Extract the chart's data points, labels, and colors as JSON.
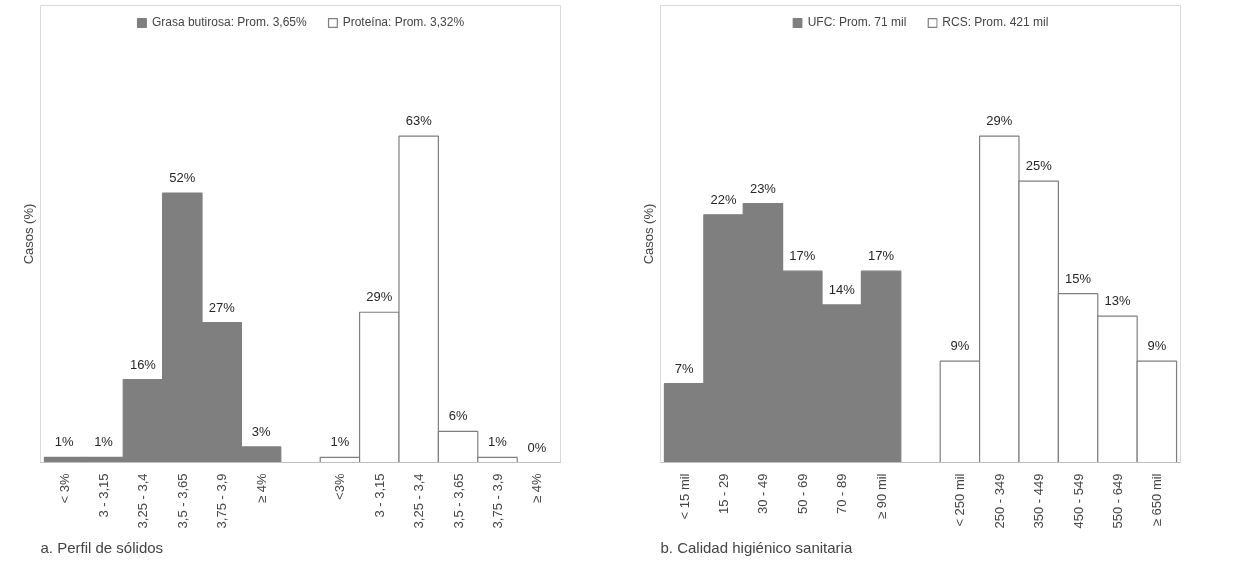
{
  "chart_data": [
    {
      "type": "bar",
      "ylabel": "Casos (%)",
      "legend": "top",
      "grid": false,
      "categories": [
        "< 3%",
        "3 - 3,15",
        "3,25 - 3,4",
        "3,5 - 3,65",
        "3,75 - 3,9",
        "≥ 4%",
        null,
        "<3%",
        "3 - 3,15",
        "3,25 - 3,4",
        "3,5 - 3,65",
        "3,75 - 3,9",
        "≥ 4%"
      ],
      "series": [
        {
          "name": "Grasa butirosa: Prom. 3,65%",
          "color": "#7f7f7f",
          "values": [
            1,
            1,
            16,
            52,
            27,
            3,
            null,
            null,
            null,
            null,
            null,
            null,
            null
          ],
          "value_labels": [
            "1%",
            "1%",
            "16%",
            "52%",
            "27%",
            "3%",
            null,
            null,
            null,
            null,
            null,
            null,
            null
          ]
        },
        {
          "name": "Proteína: Prom. 3,32%",
          "color": "#ffffff",
          "values": [
            null,
            null,
            null,
            null,
            null,
            null,
            null,
            1,
            29,
            63,
            6,
            1,
            0
          ],
          "value_labels": [
            null,
            null,
            null,
            null,
            null,
            null,
            null,
            "1%",
            "29%",
            "63%",
            "6%",
            "1%",
            "0%"
          ]
        }
      ],
      "annotations": [
        "a.     Perfil de sólidos"
      ]
    },
    {
      "type": "bar",
      "ylabel": "Casos (%)",
      "legend": "top",
      "grid": false,
      "categories": [
        "< 15 mil",
        "15 - 29",
        "30 - 49",
        "50 - 69",
        "70 - 89",
        "≥ 90 mil",
        null,
        "< 250 mil",
        "250 - 349",
        "350 - 449",
        "450 - 549",
        "550 - 649",
        "≥ 650 mil"
      ],
      "series": [
        {
          "name": "UFC: Prom. 71 mil",
          "color": "#7f7f7f",
          "values": [
            7,
            22,
            23,
            17,
            14,
            17,
            null,
            null,
            null,
            null,
            null,
            null,
            null
          ],
          "value_labels": [
            "7%",
            "22%",
            "23%",
            "17%",
            "14%",
            "17%",
            null,
            null,
            null,
            null,
            null,
            null,
            null
          ]
        },
        {
          "name": "RCS: Prom. 421 mil",
          "color": "#ffffff",
          "values": [
            null,
            null,
            null,
            null,
            null,
            null,
            null,
            9,
            29,
            25,
            15,
            13,
            9
          ],
          "value_labels": [
            null,
            null,
            null,
            null,
            null,
            null,
            null,
            "9%",
            "29%",
            "25%",
            "15%",
            "13%",
            "9%"
          ]
        }
      ],
      "annotations": [
        "b.     Calidad higiénico sanitaria"
      ]
    }
  ]
}
